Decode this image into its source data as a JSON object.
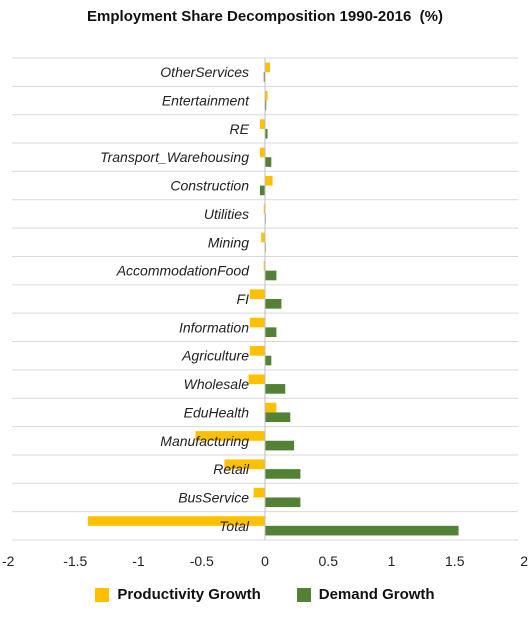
{
  "title": "Employment Share Decomposition 1990-2016  (%)",
  "chart_data": {
    "type": "bar",
    "orientation": "horizontal",
    "title": "Employment Share Decomposition 1990-2016  (%)",
    "categories": [
      "OtherServices",
      "Entertainment",
      "RE",
      "Transport_Warehousing",
      "Construction",
      "Utilities",
      "Mining",
      "AccommodationFood",
      "FI",
      "Information",
      "Agriculture",
      "Wholesale",
      "EduHealth",
      "Manufacturing",
      "Retail",
      "BusService",
      "Total"
    ],
    "series": [
      {
        "name": "Productivity Growth",
        "color": "#FFC000",
        "values": [
          0.04,
          0.02,
          -0.04,
          -0.04,
          0.06,
          -0.01,
          -0.03,
          -0.01,
          -0.12,
          -0.12,
          -0.12,
          -0.13,
          0.09,
          -0.55,
          -0.32,
          -0.09,
          -1.4
        ]
      },
      {
        "name": "Demand Growth",
        "color": "#548235",
        "values": [
          -0.01,
          0.01,
          0.02,
          0.05,
          -0.04,
          0.0,
          0.0,
          0.09,
          0.13,
          0.09,
          0.05,
          0.16,
          0.2,
          0.23,
          0.28,
          0.28,
          1.53
        ]
      }
    ],
    "xlim": [
      -2,
      2
    ],
    "xticks": [
      "-2",
      "-1.5",
      "-1",
      "-0.5",
      "0",
      "0.5",
      "1",
      "1.5",
      "2"
    ],
    "grid": "horizontal",
    "legend": "bottom"
  }
}
